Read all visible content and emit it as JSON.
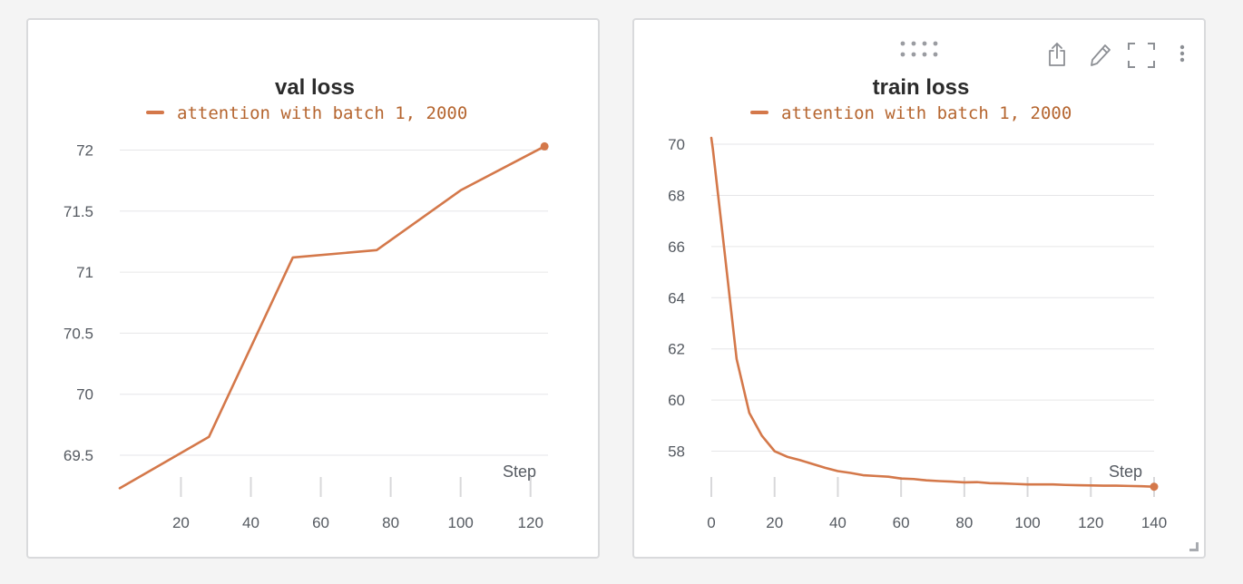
{
  "colors": {
    "series": "#d4784a",
    "legend_text": "#b5652f"
  },
  "panels": [
    {
      "toolbar": false,
      "chart_data": {
        "type": "line",
        "title": "val loss",
        "xlabel": "Step",
        "ylabel": "",
        "xlim": [
          2.5,
          125
        ],
        "ylim": [
          69.24,
          72.1
        ],
        "x_ticks": [
          20,
          40,
          60,
          80,
          100,
          120
        ],
        "y_ticks": [
          69.5,
          70,
          70.5,
          71,
          71.5,
          72
        ],
        "y_tick_labels": [
          "69.5",
          "70",
          "70.5",
          "71",
          "71.5",
          "72"
        ],
        "legend": "top-center",
        "grid": true,
        "series": [
          {
            "name": "attention with batch 1, 2000",
            "x": [
              2.5,
              28,
              52,
              76,
              100,
              124
            ],
            "y": [
              69.23,
              69.65,
              71.12,
              71.18,
              71.67,
              72.03
            ]
          }
        ]
      }
    },
    {
      "toolbar": true,
      "chart_data": {
        "type": "line",
        "title": "train loss",
        "xlabel": "Step",
        "ylabel": "",
        "xlim": [
          0,
          140
        ],
        "ylim": [
          56.6,
          70.25
        ],
        "x_ticks": [
          0,
          20,
          40,
          60,
          80,
          100,
          120,
          140
        ],
        "y_ticks": [
          58,
          60,
          62,
          64,
          66,
          68,
          70
        ],
        "y_tick_labels": [
          "58",
          "60",
          "62",
          "64",
          "66",
          "68",
          "70"
        ],
        "legend": "top-center",
        "grid": true,
        "series": [
          {
            "name": "attention with batch 1, 2000",
            "x": [
              0,
              0.5,
              4,
              8,
              12,
              16,
              20,
              24,
              28,
              32,
              36,
              40,
              44,
              48,
              52,
              56,
              60,
              64,
              68,
              72,
              76,
              80,
              84,
              88,
              92,
              96,
              100,
              104,
              108,
              112,
              116,
              120,
              124,
              128,
              132,
              136,
              140
            ],
            "y": [
              70.25,
              69.8,
              66.0,
              61.6,
              59.5,
              58.6,
              58.0,
              57.78,
              57.65,
              57.5,
              57.35,
              57.22,
              57.15,
              57.06,
              57.03,
              57.0,
              56.93,
              56.91,
              56.86,
              56.83,
              56.81,
              56.78,
              56.79,
              56.75,
              56.74,
              56.72,
              56.7,
              56.7,
              56.7,
              56.68,
              56.67,
              56.66,
              56.65,
              56.65,
              56.64,
              56.63,
              56.61
            ]
          }
        ]
      }
    }
  ]
}
